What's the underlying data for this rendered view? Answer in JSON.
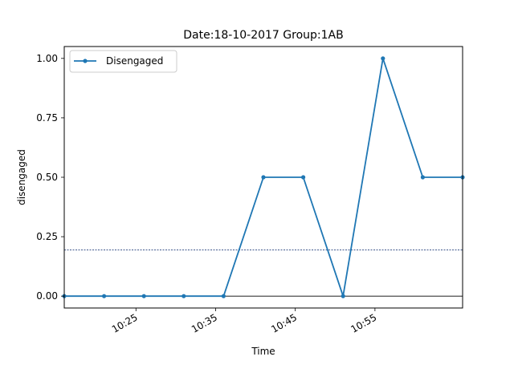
{
  "chart_data": {
    "type": "line",
    "title": "Date:18-10-2017  Group:1AB",
    "xlabel": "Time",
    "ylabel": "disengaged",
    "x": [
      "10:16",
      "10:21",
      "10:26",
      "10:31",
      "10:36",
      "10:41",
      "10:46",
      "10:51",
      "10:56",
      "11:01",
      "11:06"
    ],
    "xlim": [
      "10:16",
      "11:06"
    ],
    "xticks": [
      "10:25",
      "10:35",
      "10:45",
      "10:55"
    ],
    "ylim": [
      -0.05,
      1.05
    ],
    "yticks": [
      "0.00",
      "0.25",
      "0.50",
      "0.75",
      "1.00"
    ],
    "series": [
      {
        "name": "Disengaged",
        "color": "#1f77b4",
        "marker": "circle",
        "values": [
          0,
          0,
          0,
          0,
          0,
          0.5,
          0.5,
          0,
          1.0,
          0.5,
          0.5
        ]
      }
    ],
    "reference_lines": [
      {
        "y": 0.194,
        "style": "dotted",
        "color": "#1f3a78"
      },
      {
        "y": 0,
        "style": "solid",
        "color": "#000000"
      }
    ],
    "legend": "top-left",
    "grid": false
  }
}
